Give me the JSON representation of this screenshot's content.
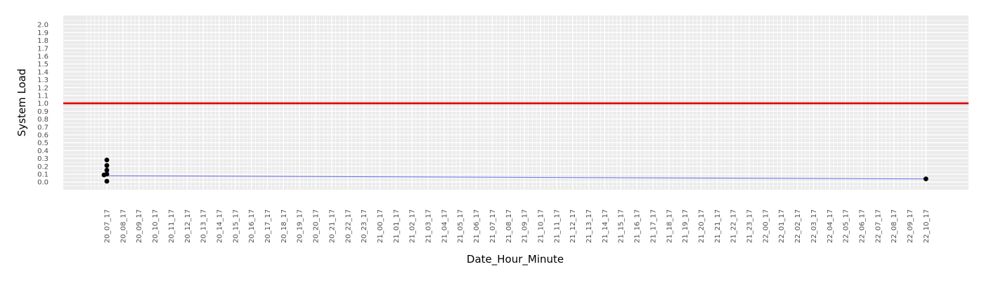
{
  "chart_data": {
    "type": "line",
    "title": "",
    "xlabel": "Date_Hour_Minute",
    "ylabel": "System Load",
    "ylim": [
      -0.08,
      2.1
    ],
    "y_ticks": [
      0.0,
      0.1,
      0.2,
      0.3,
      0.4,
      0.5,
      0.6,
      0.7,
      0.8,
      0.9,
      1.0,
      1.1,
      1.2,
      1.3,
      1.4,
      1.5,
      1.6,
      1.7,
      1.8,
      1.9,
      2.0
    ],
    "y_tick_labels": [
      "0.0",
      "0.1",
      "0.2",
      "0.3",
      "0.4",
      "0.5",
      "0.6",
      "0.7",
      "0.8",
      "0.9",
      "1.0",
      "1.1",
      "1.2",
      "1.3",
      "1.4",
      "1.5",
      "1.6",
      "1.7",
      "1.8",
      "1.9",
      "2.0"
    ],
    "x_categories": [
      "20_07_17",
      "20_08_17",
      "20_09_17",
      "20_10_17",
      "20_11_17",
      "20_12_17",
      "20_13_17",
      "20_14_17",
      "20_15_17",
      "20_16_17",
      "20_17_17",
      "20_18_17",
      "20_19_17",
      "20_20_17",
      "20_21_17",
      "20_22_17",
      "20_23_17",
      "21_00_17",
      "21_01_17",
      "21_02_17",
      "21_03_17",
      "21_04_17",
      "21_05_17",
      "21_06_17",
      "21_07_17",
      "21_08_17",
      "21_09_17",
      "21_10_17",
      "21_11_17",
      "21_12_17",
      "21_13_17",
      "21_14_17",
      "21_15_17",
      "21_16_17",
      "21_17_17",
      "21_18_17",
      "21_19_17",
      "21_20_17",
      "21_21_17",
      "21_22_17",
      "21_23_17",
      "22_00_17",
      "22_01_17",
      "22_02_17",
      "22_03_17",
      "22_04_17",
      "22_05_17",
      "22_06_17",
      "22_07_17",
      "22_08_17",
      "22_09_17",
      "22_10_17"
    ],
    "x_minor_per_major": 4,
    "points": [
      {
        "x": "20_07_17",
        "y": 0.28
      },
      {
        "x": "20_07_17",
        "y": 0.21
      },
      {
        "x": "20_07_17",
        "y": 0.15
      },
      {
        "x": "20_07_17",
        "y": 0.1
      },
      {
        "x": "20_07_17",
        "y": 0.09
      },
      {
        "x": "20_07_17",
        "y": 0.01
      },
      {
        "x": "22_10_17",
        "y": 0.04
      }
    ],
    "trend_line": {
      "x_start": "20_07_17",
      "y_start": 0.08,
      "x_end": "22_10_17",
      "y_end": 0.04,
      "color": "#6b6bf0"
    },
    "reference_line": {
      "y": 1.0,
      "color": "#e00000"
    },
    "grid": true,
    "colors": {
      "panel": "#ebebeb",
      "grid": "#ffffff",
      "points": "#000000"
    }
  }
}
